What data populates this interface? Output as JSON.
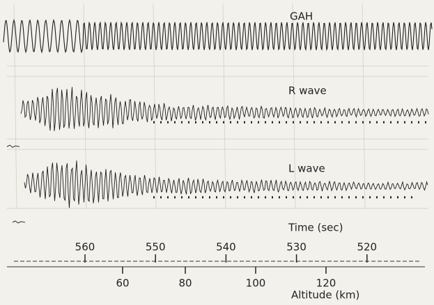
{
  "traces": [
    {
      "label": "GAH"
    },
    {
      "label": "R wave"
    },
    {
      "label": "L wave"
    }
  ],
  "time_axis": {
    "label": "Time (sec)",
    "ticks": [
      "560",
      "550",
      "540",
      "530",
      "520"
    ]
  },
  "altitude_axis": {
    "label": "Altitude (km)",
    "ticks": [
      "60",
      "80",
      "100",
      "120"
    ]
  }
}
